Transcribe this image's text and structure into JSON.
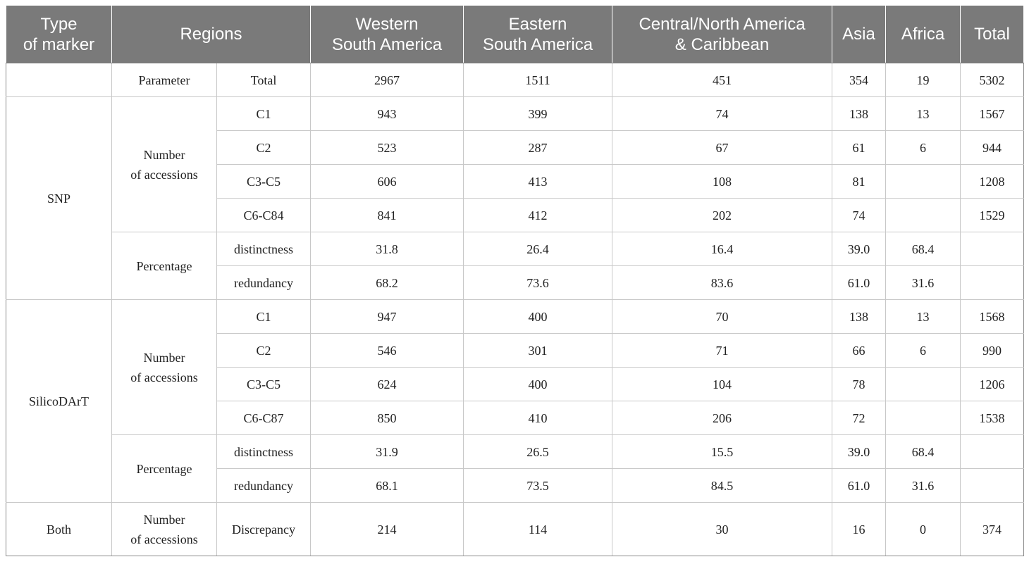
{
  "header": {
    "type_of_marker": [
      "Type",
      "of marker"
    ],
    "regions": "Regions",
    "western_south_america": [
      "Western",
      "South America"
    ],
    "eastern_south_america": [
      "Eastern",
      "South America"
    ],
    "central_north_america_caribbean": [
      "Central/North America",
      "& Caribbean"
    ],
    "asia": "Asia",
    "africa": "Africa",
    "total": "Total"
  },
  "groups": {
    "snp": "SNP",
    "silicodart": "SilicoDArT",
    "both": "Both"
  },
  "subgroups": {
    "parameter": "Parameter",
    "number_of_accessions": [
      "Number",
      "of accessions"
    ],
    "percentage": "Percentage"
  },
  "rows": [
    {
      "label": "Total",
      "values": [
        "2967",
        "1511",
        "451",
        "354",
        "19",
        "5302"
      ]
    },
    {
      "label": "C1",
      "values": [
        "943",
        "399",
        "74",
        "138",
        "13",
        "1567"
      ]
    },
    {
      "label": "C2",
      "values": [
        "523",
        "287",
        "67",
        "61",
        "6",
        "944"
      ]
    },
    {
      "label": "C3-C5",
      "values": [
        "606",
        "413",
        "108",
        "81",
        "",
        "1208"
      ]
    },
    {
      "label": "C6-C84",
      "values": [
        "841",
        "412",
        "202",
        "74",
        "",
        "1529"
      ]
    },
    {
      "label": "distinctness",
      "values": [
        "31.8",
        "26.4",
        "16.4",
        "39.0",
        "68.4",
        ""
      ]
    },
    {
      "label": "redundancy",
      "values": [
        "68.2",
        "73.6",
        "83.6",
        "61.0",
        "31.6",
        ""
      ]
    },
    {
      "label": "C1",
      "values": [
        "947",
        "400",
        "70",
        "138",
        "13",
        "1568"
      ]
    },
    {
      "label": "C2",
      "values": [
        "546",
        "301",
        "71",
        "66",
        "6",
        "990"
      ]
    },
    {
      "label": "C3-C5",
      "values": [
        "624",
        "400",
        "104",
        "78",
        "",
        "1206"
      ]
    },
    {
      "label": "C6-C87",
      "values": [
        "850",
        "410",
        "206",
        "72",
        "",
        "1538"
      ]
    },
    {
      "label": "distinctness",
      "values": [
        "31.9",
        "26.5",
        "15.5",
        "39.0",
        "68.4",
        ""
      ]
    },
    {
      "label": "redundancy",
      "values": [
        "68.1",
        "73.5",
        "84.5",
        "61.0",
        "31.6",
        ""
      ]
    },
    {
      "label": "Discrepancy",
      "values": [
        "214",
        "114",
        "30",
        "16",
        "0",
        "374"
      ]
    }
  ],
  "colors": {
    "header_background": "#7a7a7a",
    "header_text": "#ffffff",
    "grid_line": "#c8c8c8",
    "body_text": "#222222"
  }
}
